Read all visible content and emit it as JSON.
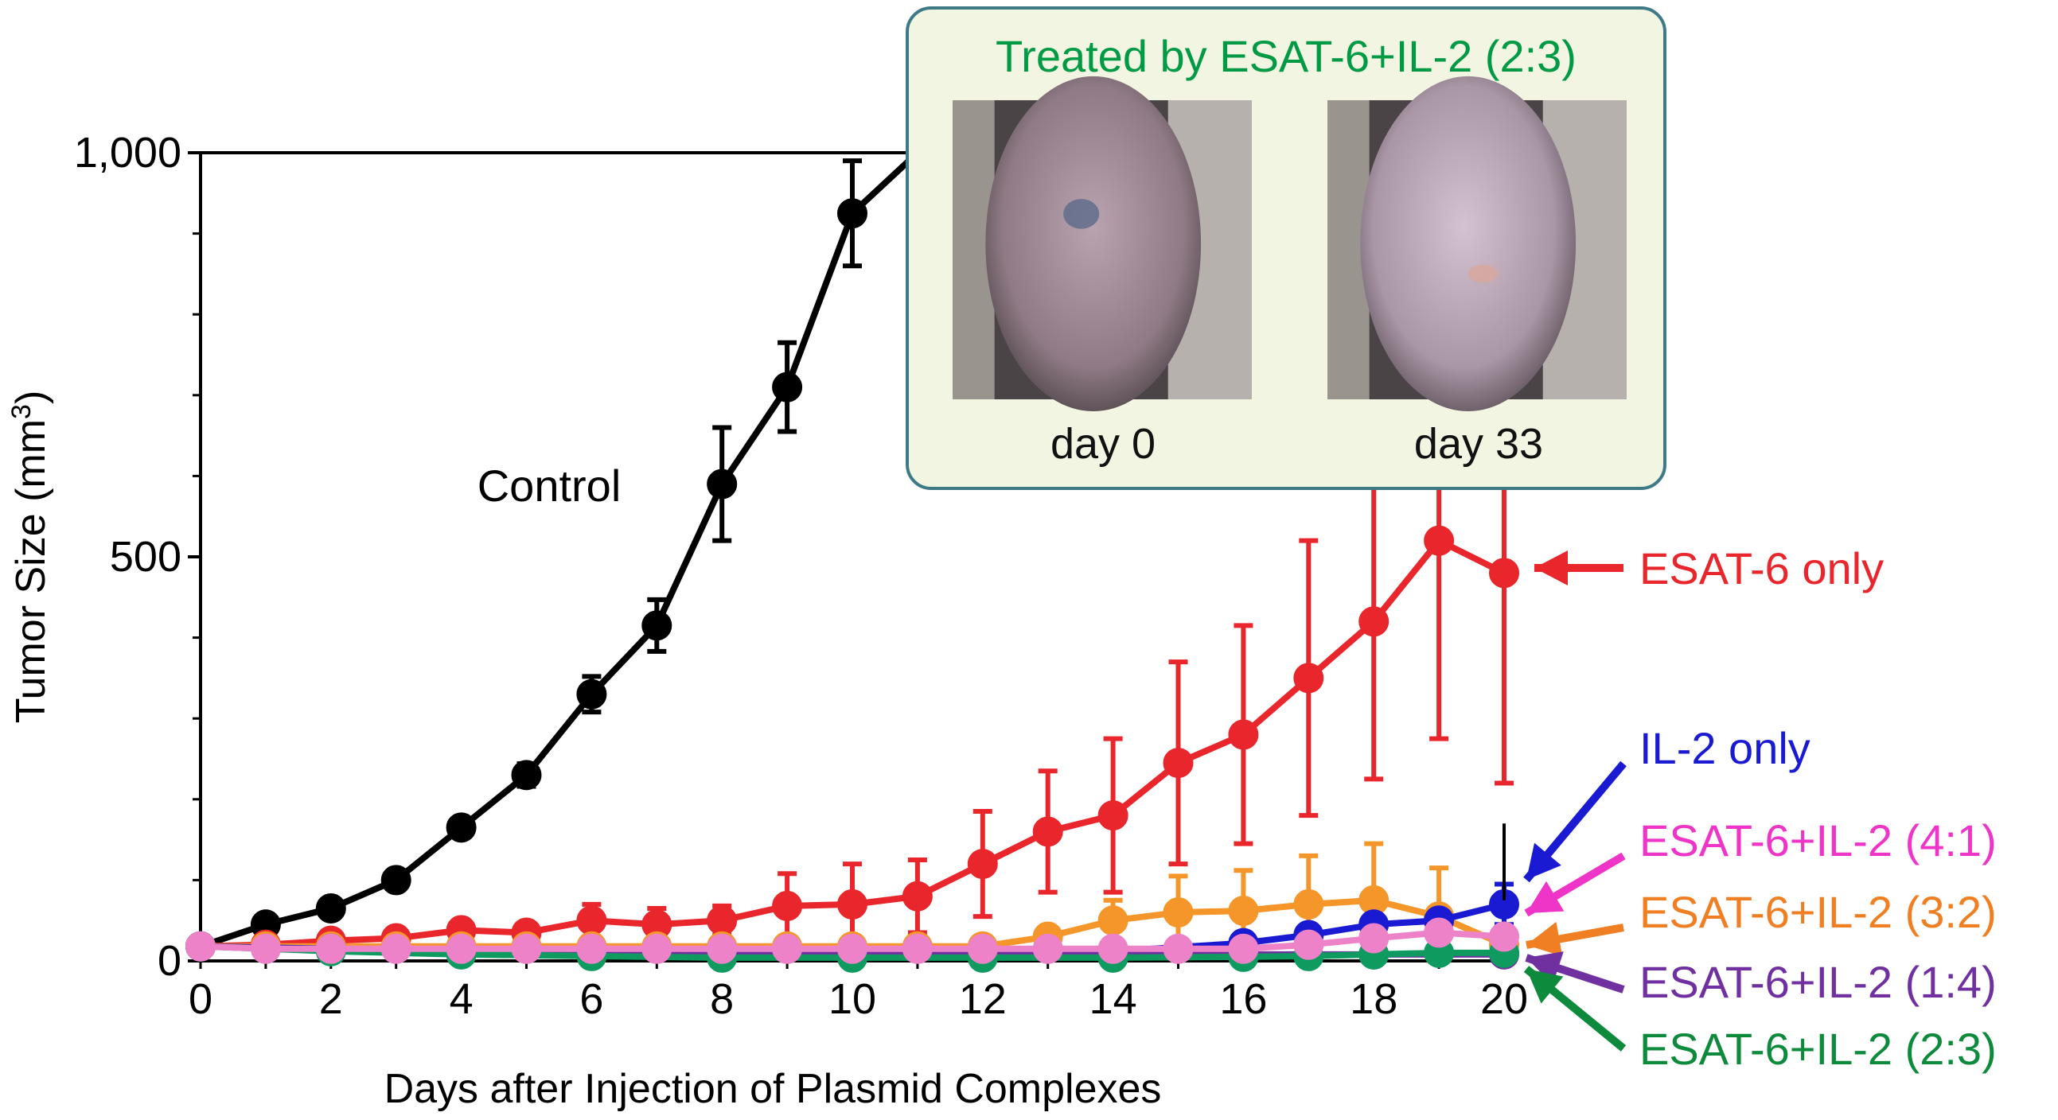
{
  "chart_data": {
    "type": "line",
    "xlabel": "Days after Injection of Plasmid Complexes",
    "ylabel": "Tumor Size (mm",
    "ylabel_sup": "3",
    "ylabel_close": ")",
    "xlim": [
      0,
      20
    ],
    "ylim": [
      0,
      1000
    ],
    "xticks": [
      0,
      2,
      4,
      6,
      8,
      10,
      12,
      14,
      16,
      18,
      20
    ],
    "yticks": [
      {
        "value": 0,
        "label": "0"
      },
      {
        "value": 500,
        "label": "500"
      },
      {
        "value": 1000,
        "label": "1,000"
      }
    ],
    "series": [
      {
        "name": "Control",
        "color": "#000000",
        "x": [
          0,
          1,
          2,
          3,
          4,
          5,
          6,
          7,
          8,
          9,
          10,
          11
        ],
        "values": [
          18,
          45,
          65,
          100,
          165,
          230,
          330,
          415,
          590,
          710,
          925,
          1000
        ],
        "errors": [
          0,
          5,
          6,
          8,
          10,
          14,
          22,
          32,
          70,
          55,
          65,
          0
        ]
      },
      {
        "name": "ESAT-6 only",
        "color": "#e8262b",
        "x": [
          0,
          1,
          2,
          3,
          4,
          5,
          6,
          7,
          8,
          9,
          10,
          11,
          12,
          13,
          14,
          15,
          16,
          17,
          18,
          19,
          20
        ],
        "values": [
          18,
          20,
          25,
          28,
          38,
          35,
          50,
          45,
          50,
          68,
          70,
          80,
          120,
          160,
          180,
          245,
          280,
          350,
          420,
          520,
          480
        ],
        "errors": [
          0,
          0,
          0,
          0,
          8,
          5,
          20,
          20,
          18,
          40,
          50,
          45,
          65,
          75,
          95,
          125,
          135,
          170,
          195,
          245,
          260
        ]
      },
      {
        "name": "ESAT-6+IL-2 (3:2)",
        "color": "#f5962a",
        "x": [
          0,
          1,
          2,
          3,
          4,
          5,
          6,
          7,
          8,
          9,
          10,
          11,
          12,
          13,
          14,
          15,
          16,
          17,
          18,
          19,
          20
        ],
        "values": [
          18,
          18,
          18,
          18,
          18,
          18,
          18,
          18,
          18,
          18,
          18,
          18,
          18,
          30,
          50,
          60,
          62,
          70,
          75,
          55,
          20
        ],
        "errors": [
          0,
          0,
          0,
          0,
          0,
          0,
          0,
          0,
          0,
          0,
          0,
          0,
          0,
          10,
          25,
          45,
          50,
          60,
          70,
          60,
          0
        ]
      },
      {
        "name": "IL-2 only",
        "color": "#1a1ad2",
        "x": [
          0,
          2,
          4,
          6,
          8,
          10,
          12,
          14,
          16,
          17,
          18,
          19,
          20
        ],
        "values": [
          18,
          15,
          12,
          10,
          10,
          10,
          10,
          12,
          22,
          32,
          45,
          50,
          70
        ],
        "errors": [
          0,
          0,
          0,
          0,
          0,
          0,
          0,
          0,
          0,
          0,
          0,
          0,
          25
        ]
      },
      {
        "name": "ESAT-6+IL-2 (1:4)",
        "color": "#7030a0",
        "x": [
          0,
          4,
          8,
          12,
          16,
          18,
          20
        ],
        "values": [
          18,
          10,
          8,
          8,
          8,
          8,
          8
        ],
        "errors": [
          0,
          0,
          0,
          0,
          0,
          0,
          0
        ]
      },
      {
        "name": "ESAT-6+IL-2 (2:3)",
        "color": "#0f9b60",
        "x": [
          0,
          2,
          4,
          6,
          8,
          10,
          12,
          14,
          16,
          17,
          18,
          19,
          20
        ],
        "values": [
          18,
          12,
          8,
          6,
          4,
          4,
          4,
          4,
          5,
          6,
          8,
          10,
          10
        ],
        "errors": [
          0,
          0,
          0,
          0,
          0,
          0,
          0,
          0,
          0,
          0,
          0,
          0,
          0
        ]
      },
      {
        "name": "ESAT-6+IL-2 (4:1)",
        "color": "#ee82c8",
        "x": [
          0,
          1,
          2,
          3,
          4,
          5,
          6,
          7,
          8,
          9,
          10,
          11,
          12,
          13,
          14,
          15,
          16,
          17,
          18,
          19,
          20
        ],
        "values": [
          18,
          15,
          15,
          15,
          15,
          15,
          15,
          15,
          15,
          15,
          15,
          15,
          15,
          15,
          15,
          15,
          15,
          20,
          28,
          35,
          30
        ],
        "errors": [
          0,
          0,
          0,
          0,
          0,
          0,
          0,
          0,
          0,
          0,
          0,
          0,
          0,
          0,
          0,
          0,
          0,
          0,
          0,
          0,
          0
        ]
      }
    ],
    "annotations": {
      "control_label": "Control",
      "series_labels": [
        {
          "text": "ESAT-6 only",
          "color": "#e8262b"
        },
        {
          "text": "IL-2 only",
          "color": "#1a1ad2"
        },
        {
          "text": "ESAT-6+IL-2 (4:1)",
          "color": "#ee35c8"
        },
        {
          "text": "ESAT-6+IL-2 (3:2)",
          "color": "#f07e22"
        },
        {
          "text": "ESAT-6+IL-2 (1:4)",
          "color": "#7030a0"
        },
        {
          "text": "ESAT-6+IL-2 (2:3)",
          "color": "#0e8a3c"
        }
      ]
    },
    "inset": {
      "title": "Treated by ESAT-6+IL-2 (2:3)",
      "captions": [
        "day 0",
        "day 33"
      ]
    }
  }
}
